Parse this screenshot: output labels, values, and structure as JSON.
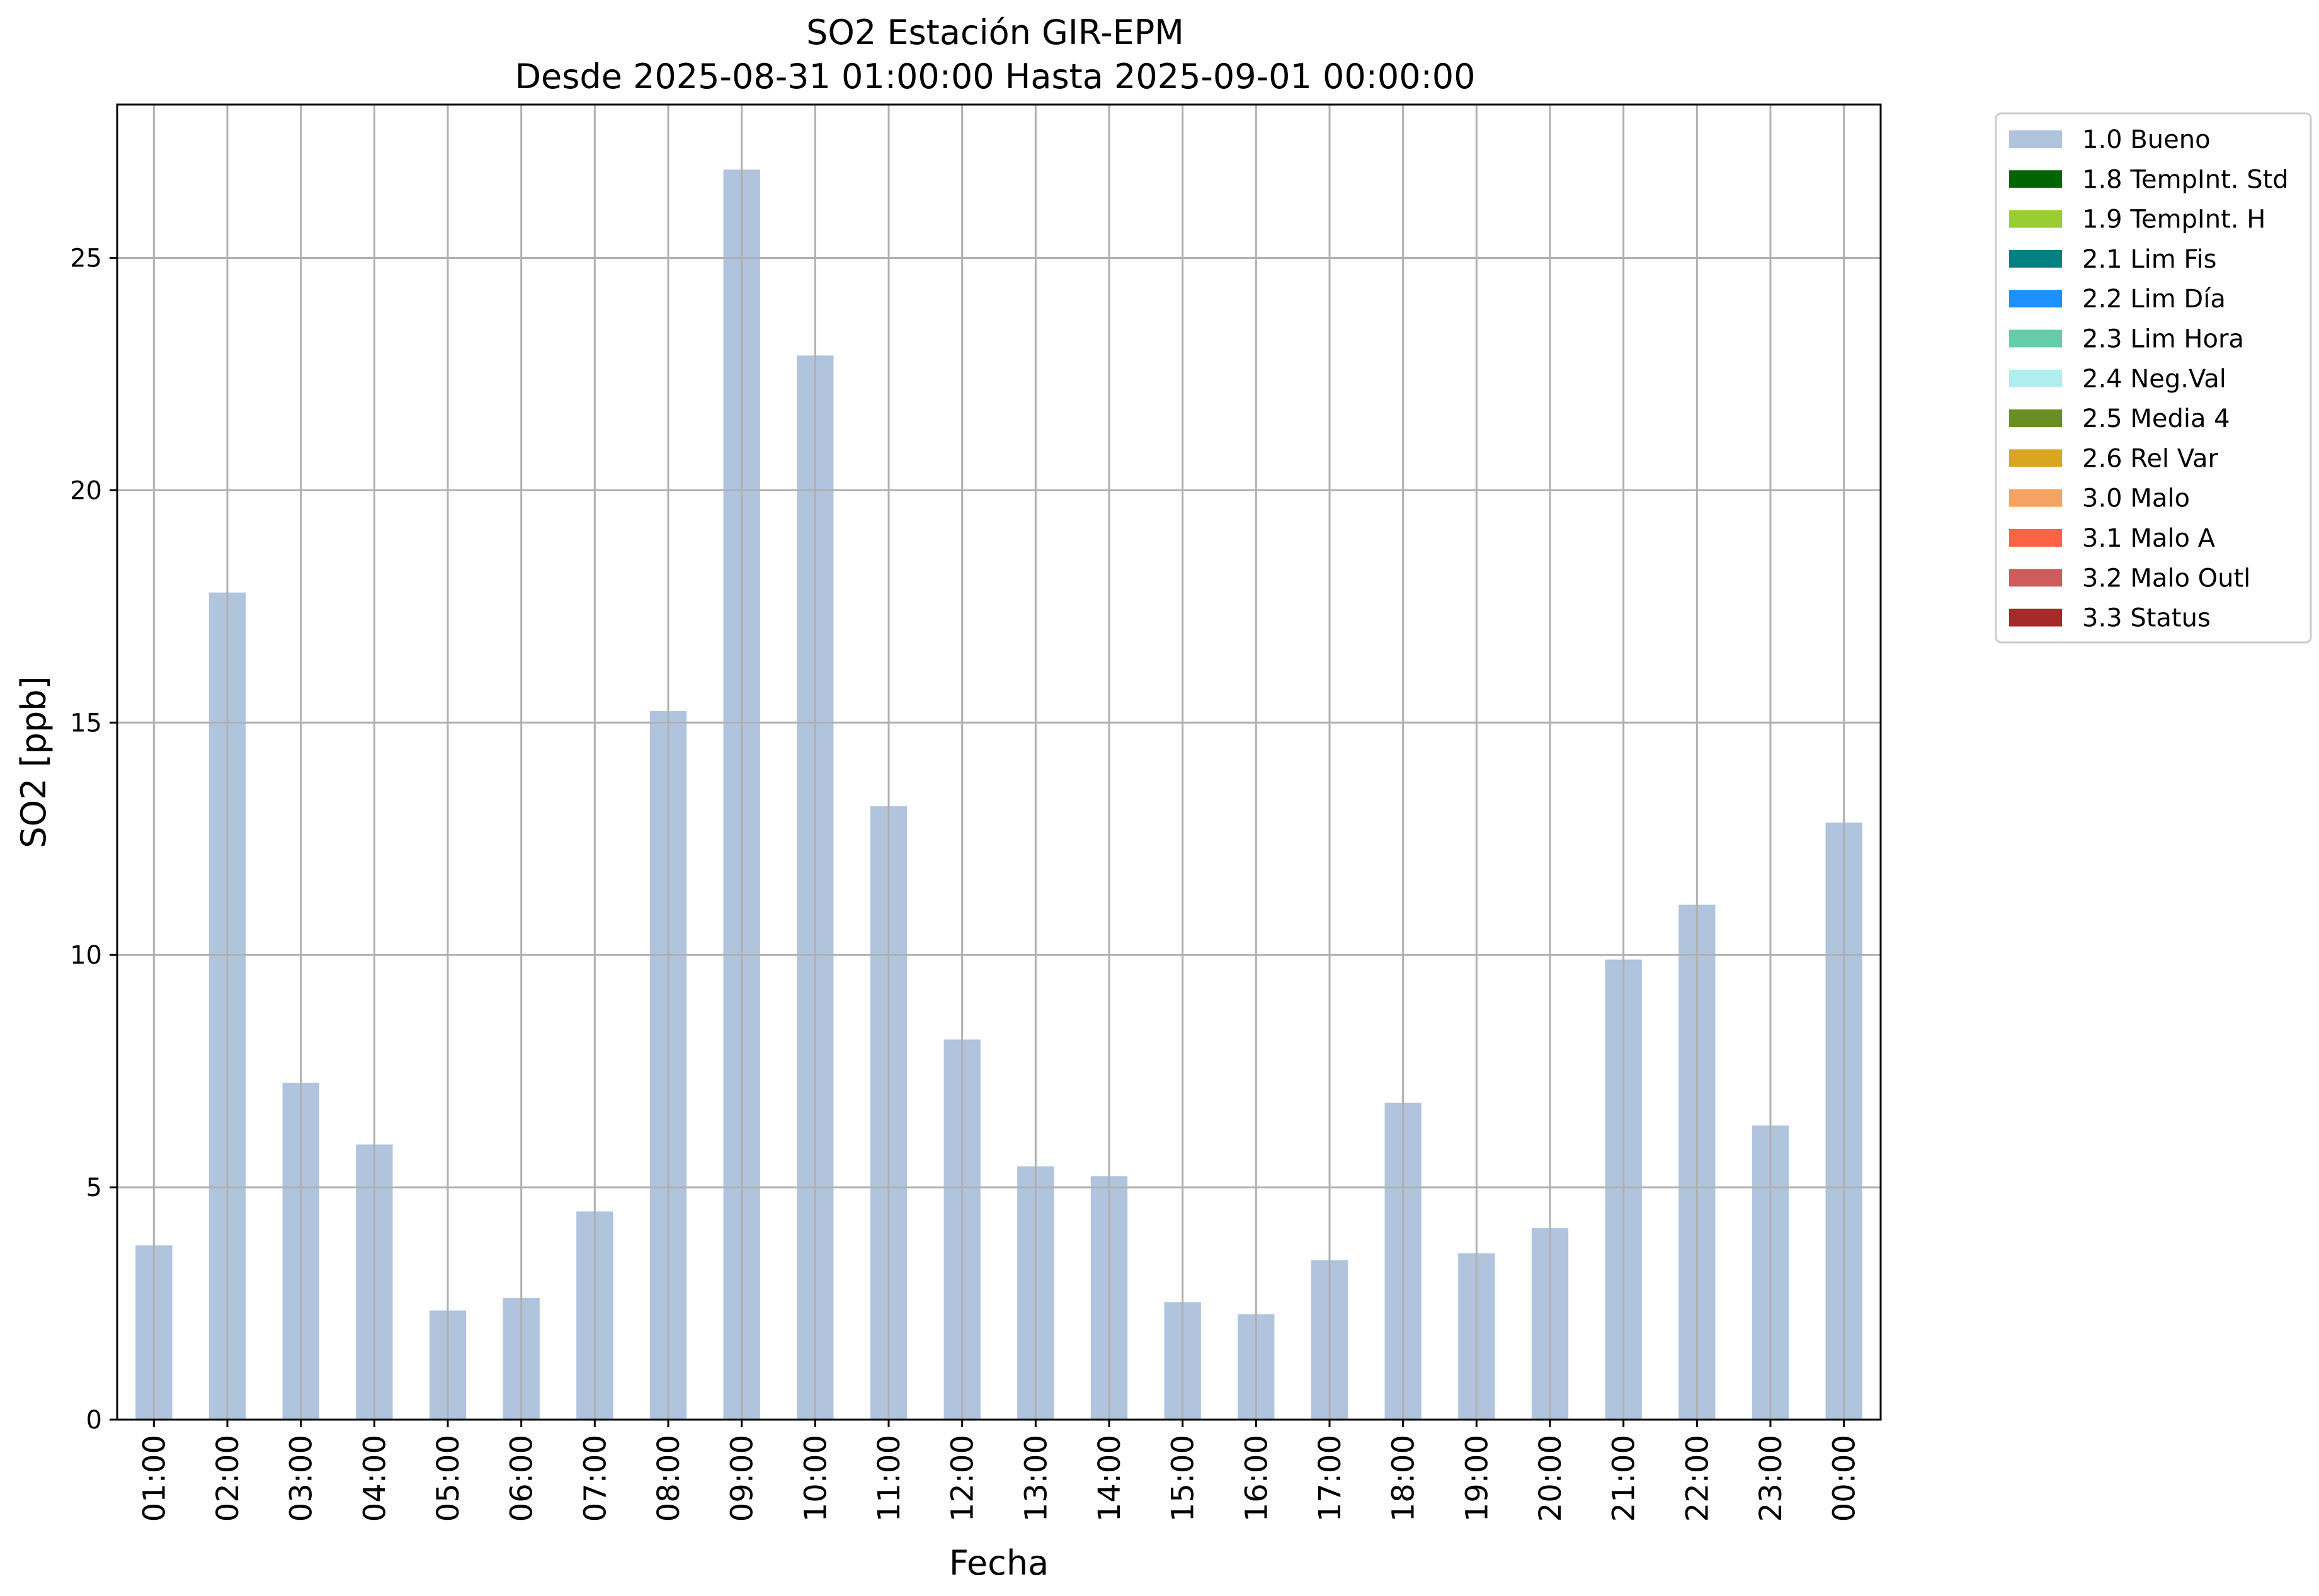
{
  "chart_data": {
    "type": "bar",
    "title": "SO2 Estación GIR-EPM",
    "subtitle": "Desde 2025-08-31 01:00:00 Hasta 2025-09-01 00:00:00",
    "xlabel": "Fecha",
    "ylabel": "SO2 [ppb]",
    "ylim": [
      0,
      28.3
    ],
    "yticks": [
      0,
      5,
      10,
      15,
      20,
      25
    ],
    "grid": true,
    "legend_position": "outside top-right",
    "categories": [
      "01:00",
      "02:00",
      "03:00",
      "04:00",
      "05:00",
      "06:00",
      "07:00",
      "08:00",
      "09:00",
      "10:00",
      "11:00",
      "12:00",
      "13:00",
      "14:00",
      "15:00",
      "16:00",
      "17:00",
      "18:00",
      "19:00",
      "20:00",
      "21:00",
      "22:00",
      "23:00",
      "00:00"
    ],
    "series": [
      {
        "name": "1.0 Bueno",
        "color": "#b0c4de",
        "values": [
          3.75,
          17.8,
          7.25,
          5.92,
          2.35,
          2.62,
          4.48,
          15.25,
          26.9,
          22.9,
          13.2,
          8.18,
          5.45,
          5.24,
          2.53,
          2.27,
          3.43,
          6.82,
          3.58,
          4.12,
          9.9,
          11.08,
          6.33,
          12.85
        ]
      }
    ],
    "legend": [
      {
        "label": "1.0 Bueno",
        "color": "#b0c4de"
      },
      {
        "label": "1.8 TempInt. Std",
        "color": "#006400"
      },
      {
        "label": "1.9 TempInt. H",
        "color": "#9acd32"
      },
      {
        "label": "2.1 Lim Fis",
        "color": "#008080"
      },
      {
        "label": "2.2 Lim Día",
        "color": "#1e90ff"
      },
      {
        "label": "2.3 Lim Hora",
        "color": "#66cdaa"
      },
      {
        "label": "2.4 Neg.Val",
        "color": "#afeeee"
      },
      {
        "label": "2.5 Media 4",
        "color": "#6b8e23"
      },
      {
        "label": "2.6 Rel Var",
        "color": "#daa520"
      },
      {
        "label": "3.0 Malo",
        "color": "#f4a460"
      },
      {
        "label": "3.1 Malo A",
        "color": "#ff6347"
      },
      {
        "label": "3.2 Malo Outl",
        "color": "#cd5c5c"
      },
      {
        "label": "3.3 Status",
        "color": "#a52a2a"
      }
    ]
  }
}
